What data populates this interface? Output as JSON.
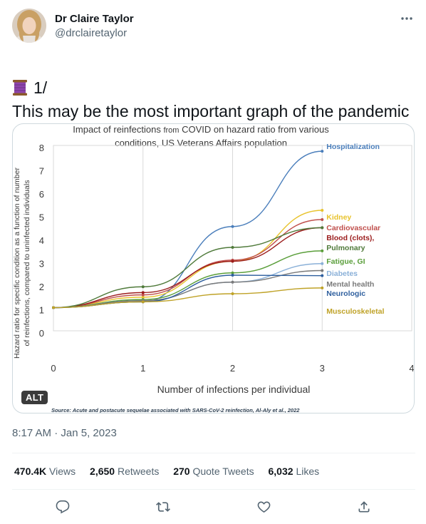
{
  "author": {
    "name": "Dr Claire Taylor",
    "handle": "@drclairetaylor"
  },
  "tweet": {
    "thread_marker": "1/",
    "text": "This may be the most important graph of the pandemic so far.",
    "thread_icon": "spool-of-thread-emoji"
  },
  "media": {
    "alt_badge": "ALT"
  },
  "meta": {
    "time": "8:17 AM",
    "separator": " · ",
    "date": "Jan 5, 2023"
  },
  "stats": {
    "views_count": "470.4K",
    "views_label": "Views",
    "retweets_count": "2,650",
    "retweets_label": "Retweets",
    "quotes_count": "270",
    "quotes_label": "Quote Tweets",
    "likes_count": "6,032",
    "likes_label": "Likes"
  },
  "actions": [
    "reply-icon",
    "retweet-icon",
    "like-icon",
    "share-icon"
  ],
  "colors": {
    "text_primary": "#0f1419",
    "text_secondary": "#536471",
    "border": "#cfd9de"
  },
  "chart_data": {
    "type": "line",
    "title_line1_a": "Impact of reinfections ",
    "title_line1_b": "from",
    "title_line1_c": " COVID on hazard ratio from various",
    "title_line2": "conditions, US Veterans Affairs population",
    "xlabel": "Number of infections per individual",
    "ylabel_line1": "Hazard ratio for specific condition as a function of number",
    "ylabel_line2": "of reinfections, compared to uninfected individuals",
    "xlim": [
      0,
      4
    ],
    "ylim": [
      0,
      8
    ],
    "x_ticks": [
      "0",
      "1",
      "2",
      "3",
      "4"
    ],
    "y_ticks": [
      "0",
      "1",
      "2",
      "3",
      "4",
      "5",
      "6",
      "7",
      "8"
    ],
    "grid": "vertical",
    "source": "Source: Acute and postacute sequelae associated with SARS-CoV-2 reinfection, Al-Aly et al., 2022",
    "x": [
      0,
      1,
      2,
      3
    ],
    "series": [
      {
        "name": "Hospitalization",
        "values": [
          1,
          1.25,
          4.5,
          7.75
        ],
        "color": "#4a7ebb"
      },
      {
        "name": "Kidney",
        "values": [
          1,
          1.45,
          3.0,
          5.2
        ],
        "color": "#e8c32d"
      },
      {
        "name": "Cardiovascular",
        "values": [
          1,
          1.55,
          3.05,
          4.8
        ],
        "color": "#c0504d"
      },
      {
        "name": "Blood (clots),",
        "values": [
          1,
          1.65,
          3.0,
          4.45
        ],
        "color": "#9b1c1c"
      },
      {
        "name": "Pulmonary",
        "values": [
          1,
          1.9,
          3.6,
          4.45
        ],
        "color": "#4f7a3a"
      },
      {
        "name": "Fatigue, GI",
        "values": [
          1,
          1.35,
          2.5,
          3.45
        ],
        "color": "#5a9e3a"
      },
      {
        "name": "Diabetes",
        "values": [
          1,
          1.3,
          2.1,
          2.9
        ],
        "color": "#8ab0d8"
      },
      {
        "name": "Mental health",
        "values": [
          1,
          1.3,
          2.1,
          2.6
        ],
        "color": "#7a7a7a"
      },
      {
        "name": "Neurologic",
        "values": [
          1,
          1.25,
          2.4,
          2.38
        ],
        "color": "#2e5f9e"
      },
      {
        "name": "Musculoskeletal",
        "values": [
          1,
          1.25,
          1.6,
          1.85
        ],
        "color": "#bfa227"
      }
    ]
  }
}
